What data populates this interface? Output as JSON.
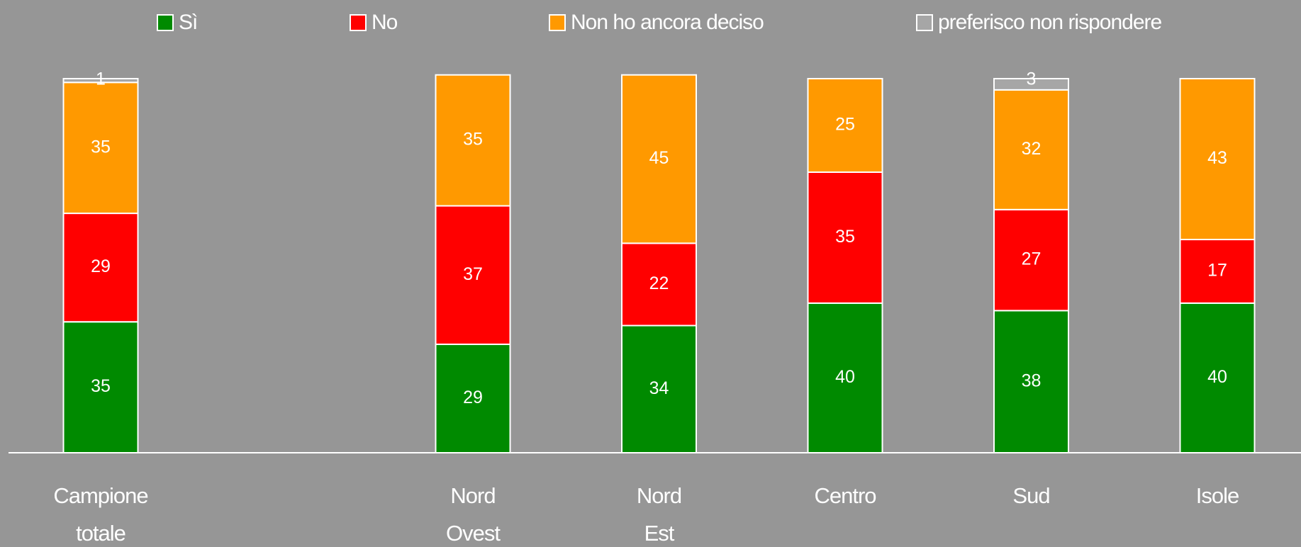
{
  "chart_data": {
    "type": "stacked_bar",
    "categories": [
      "Campione totale",
      null,
      "Nord Ovest",
      "Nord Est",
      "Centro",
      "Sud",
      "Isole"
    ],
    "series": [
      {
        "name": "Sì",
        "color": "#008a00",
        "values": [
          35,
          null,
          29,
          34,
          40,
          38,
          40
        ]
      },
      {
        "name": "No",
        "color": "#ff0000",
        "values": [
          29,
          null,
          37,
          22,
          35,
          27,
          17
        ]
      },
      {
        "name": "Non ho ancora deciso",
        "color": "#ff9900",
        "values": [
          35,
          null,
          35,
          45,
          25,
          32,
          43
        ]
      },
      {
        "name": "preferisco non rispondere",
        "color": "#a6a6a6",
        "values": [
          1,
          null,
          null,
          null,
          null,
          3,
          null
        ]
      }
    ],
    "ylim": [
      0,
      100
    ],
    "legend": "top"
  }
}
